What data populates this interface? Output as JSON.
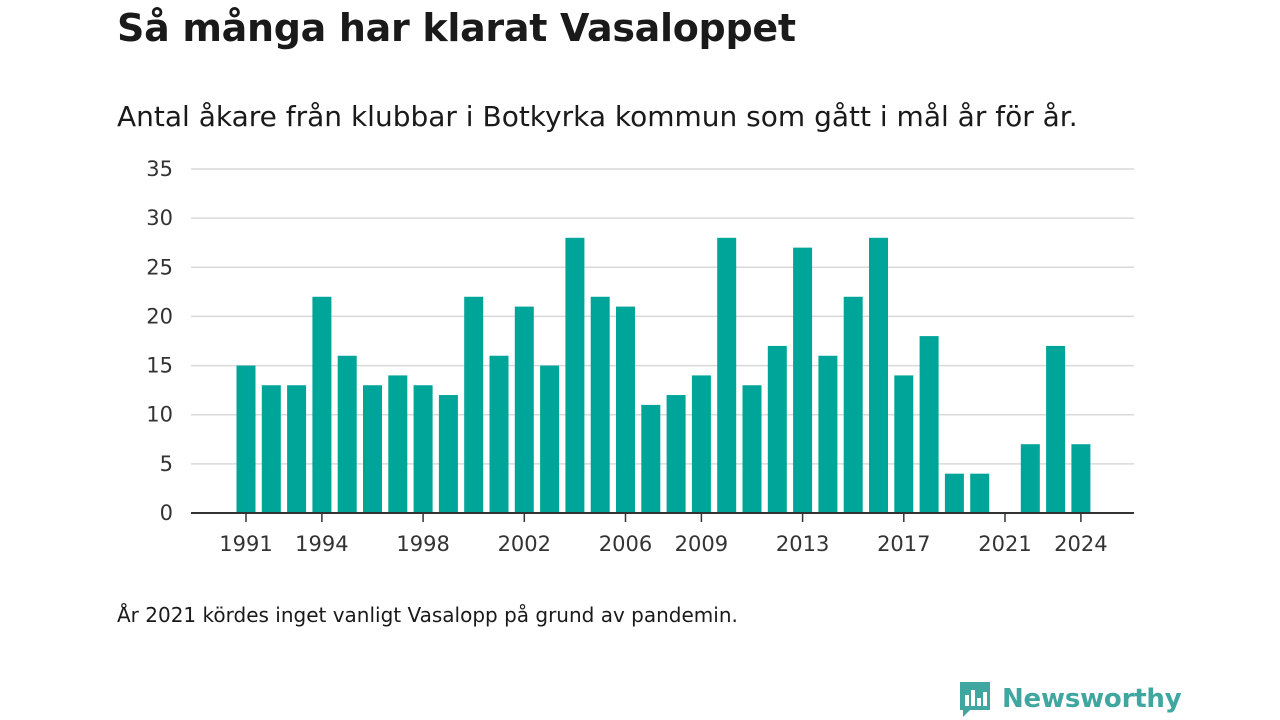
{
  "title": "Så många har klarat Vasaloppet",
  "subtitle": "Antal åkare från klubbar i Botkyrka kommun som gått i mål år för år.",
  "note": "År 2021 kördes inget vanligt Vasalopp på grund av pandemin.",
  "brand": {
    "name": "Newsworthy",
    "icon": "newsworthy-logo-icon",
    "color": "#3fa6a0"
  },
  "chart_data": {
    "type": "bar",
    "categories": [
      "1991",
      "1992",
      "1993",
      "1994",
      "1995",
      "1996",
      "1997",
      "1998",
      "1999",
      "2000",
      "2001",
      "2002",
      "2003",
      "2004",
      "2005",
      "2006",
      "2007",
      "2008",
      "2009",
      "2010",
      "2011",
      "2012",
      "2013",
      "2014",
      "2015",
      "2016",
      "2017",
      "2018",
      "2019",
      "2020",
      "2021",
      "2022",
      "2023",
      "2024"
    ],
    "values": [
      15,
      13,
      13,
      22,
      16,
      13,
      14,
      13,
      12,
      22,
      16,
      21,
      15,
      28,
      22,
      21,
      11,
      12,
      14,
      28,
      13,
      17,
      27,
      16,
      22,
      28,
      14,
      18,
      4,
      4,
      0,
      7,
      17,
      7
    ],
    "x_tick_labels": [
      "1991",
      "1994",
      "1998",
      "2002",
      "2006",
      "2009",
      "2013",
      "2017",
      "2021",
      "2024"
    ],
    "y_ticks": [
      "0",
      "5",
      "10",
      "15",
      "20",
      "25",
      "30",
      "35"
    ],
    "ylim": [
      0,
      35
    ],
    "bar_color": "#00a599",
    "grid": true,
    "legend": false
  }
}
